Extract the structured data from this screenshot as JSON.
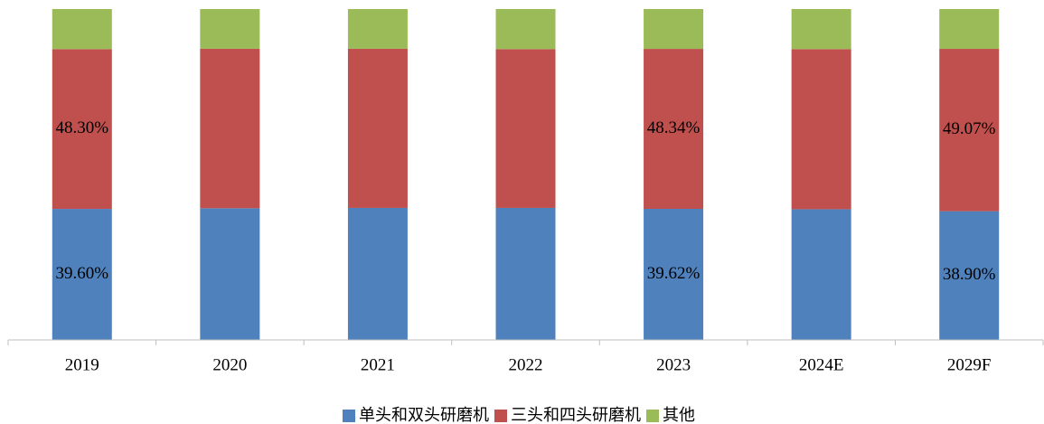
{
  "chart_data": {
    "type": "bar",
    "stacked": true,
    "categories": [
      "2019",
      "2020",
      "2021",
      "2022",
      "2023",
      "2024E",
      "2029F"
    ],
    "series": [
      {
        "name": "单头和双头研磨机",
        "color": "#4f81bd",
        "values": [
          39.6,
          39.8,
          39.9,
          39.9,
          39.62,
          39.5,
          38.9
        ],
        "value_labels": [
          "39.60%",
          null,
          null,
          null,
          "39.62%",
          null,
          "38.90%"
        ]
      },
      {
        "name": "三头和四头研磨机",
        "color": "#c0504d",
        "values": [
          48.3,
          48.2,
          48.1,
          48.0,
          48.34,
          48.4,
          49.07
        ],
        "value_labels": [
          "48.30%",
          null,
          null,
          null,
          "48.34%",
          null,
          "49.07%"
        ]
      },
      {
        "name": "其他",
        "color": "#9bbb59",
        "values": [
          12.1,
          12.0,
          12.0,
          12.1,
          12.04,
          12.1,
          12.03
        ]
      }
    ],
    "ylim": [
      0,
      100
    ],
    "legend": "bottom"
  }
}
